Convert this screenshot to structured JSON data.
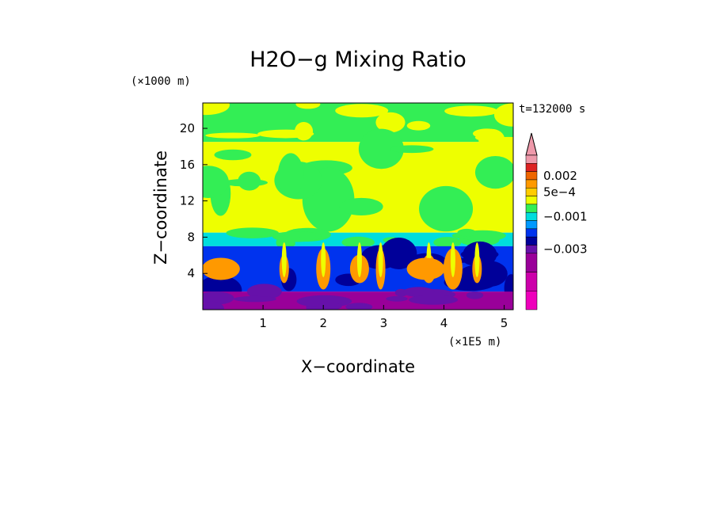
{
  "chart_data": {
    "type": "heatmap",
    "title": "H2O−g Mixing Ratio",
    "xlabel": "X−coordinate",
    "ylabel": "Z−coordinate",
    "x_units_label": "(×1E5 m)",
    "y_units_label": "(×1000 m)",
    "time_label": "t=132000 s",
    "xlim": [
      0,
      5.15
    ],
    "ylim": [
      0,
      22.8
    ],
    "x_ticks": [
      {
        "value": 1,
        "label": "1"
      },
      {
        "value": 2,
        "label": "2"
      },
      {
        "value": 3,
        "label": "3"
      },
      {
        "value": 4,
        "label": "4"
      },
      {
        "value": 5,
        "label": "5"
      }
    ],
    "y_ticks": [
      {
        "value": 4,
        "label": "4"
      },
      {
        "value": 8,
        "label": "8"
      },
      {
        "value": 12,
        "label": "12"
      },
      {
        "value": 16,
        "label": "16"
      },
      {
        "value": 20,
        "label": "20"
      }
    ],
    "colorbar": {
      "levels": [
        {
          "color": "#ee99aa"
        },
        {
          "color": "#dd2222"
        },
        {
          "color": "#ee6600"
        },
        {
          "color": "#ff9900"
        },
        {
          "color": "#ffcc00"
        },
        {
          "color": "#eeff00"
        },
        {
          "color": "#33ee55"
        },
        {
          "color": "#00dddd"
        },
        {
          "color": "#0099ff"
        },
        {
          "color": "#0033ee"
        },
        {
          "color": "#000099"
        },
        {
          "color": "#6611aa"
        },
        {
          "color": "#990099"
        },
        {
          "color": "#cc00aa"
        },
        {
          "color": "#ee00bb"
        }
      ],
      "labels": [
        {
          "label": "0.002",
          "level_index": 2
        },
        {
          "label": "5e−4",
          "level_index": 4
        },
        {
          "label": "−0.001",
          "level_index": 7
        },
        {
          "label": "−0.003",
          "level_index": 11
        }
      ]
    },
    "field_bands": [
      {
        "z": [
          18.5,
          22.8
        ],
        "dominant": "#33ee55",
        "secondary": "#eeff00"
      },
      {
        "z": [
          8.5,
          18.5
        ],
        "dominant": "#eeff00",
        "secondary": "#33ee55"
      },
      {
        "z": [
          7.0,
          8.5
        ],
        "dominant": "#00dddd",
        "secondary": "#33ee55"
      },
      {
        "z": [
          2.0,
          7.0
        ],
        "dominant": "#0033ee",
        "secondary": "#000099"
      },
      {
        "z": [
          0,
          2.0
        ],
        "dominant": "#990099",
        "secondary": "#6611aa"
      }
    ]
  }
}
